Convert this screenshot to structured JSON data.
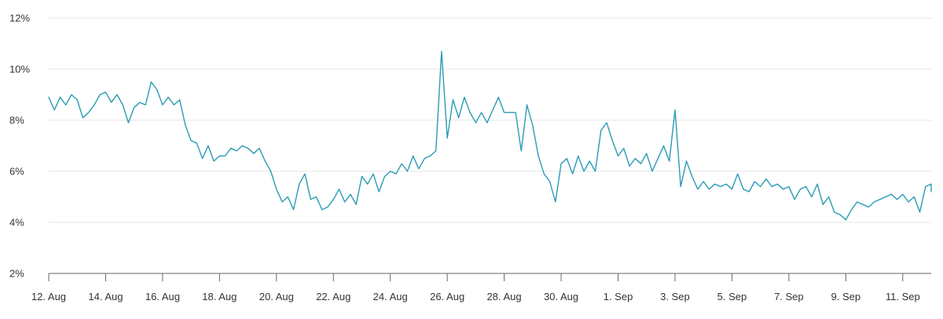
{
  "chart_data": {
    "type": "line",
    "title": "",
    "xlabel": "",
    "ylabel": "",
    "x_tick_labels": [
      "12. Aug",
      "14. Aug",
      "16. Aug",
      "18. Aug",
      "20. Aug",
      "22. Aug",
      "24. Aug",
      "26. Aug",
      "28. Aug",
      "30. Aug",
      "1. Sep",
      "3. Sep",
      "5. Sep",
      "7. Sep",
      "9. Sep",
      "11. Sep"
    ],
    "y_tick_labels": [
      "2%",
      "4%",
      "6%",
      "8%",
      "10%",
      "12%"
    ],
    "y_ticks": [
      2,
      4,
      6,
      8,
      10,
      12
    ],
    "ylim": [
      2,
      12
    ],
    "xlim": [
      "2023-08-12",
      "2023-09-12"
    ],
    "grid": true,
    "series": [
      {
        "color": "#2b9bb5",
        "points": [
          [
            "2023-08-12",
            8.9
          ],
          [
            "2023-08-12",
            8.4
          ],
          [
            "2023-08-12",
            8.9
          ],
          [
            "2023-08-12",
            8.6
          ],
          [
            "2023-08-12",
            9.0
          ],
          [
            "2023-08-13",
            8.8
          ],
          [
            "2023-08-13",
            8.1
          ],
          [
            "2023-08-13",
            8.3
          ],
          [
            "2023-08-13",
            8.6
          ],
          [
            "2023-08-13",
            9.0
          ],
          [
            "2023-08-14",
            9.1
          ],
          [
            "2023-08-14",
            8.7
          ],
          [
            "2023-08-14",
            9.0
          ],
          [
            "2023-08-14",
            8.6
          ],
          [
            "2023-08-14",
            7.9
          ],
          [
            "2023-08-15",
            8.5
          ],
          [
            "2023-08-15",
            8.7
          ],
          [
            "2023-08-15",
            8.6
          ],
          [
            "2023-08-15",
            9.5
          ],
          [
            "2023-08-15",
            9.2
          ],
          [
            "2023-08-16",
            8.6
          ],
          [
            "2023-08-16",
            8.9
          ],
          [
            "2023-08-16",
            8.6
          ],
          [
            "2023-08-16",
            8.8
          ],
          [
            "2023-08-16",
            7.8
          ],
          [
            "2023-08-17",
            7.2
          ],
          [
            "2023-08-17",
            7.1
          ],
          [
            "2023-08-17",
            6.5
          ],
          [
            "2023-08-17",
            7.0
          ],
          [
            "2023-08-17",
            6.4
          ],
          [
            "2023-08-18",
            6.6
          ],
          [
            "2023-08-18",
            6.6
          ],
          [
            "2023-08-18",
            6.9
          ],
          [
            "2023-08-18",
            6.8
          ],
          [
            "2023-08-18",
            7.0
          ],
          [
            "2023-08-19",
            6.9
          ],
          [
            "2023-08-19",
            6.7
          ],
          [
            "2023-08-19",
            6.9
          ],
          [
            "2023-08-19",
            6.4
          ],
          [
            "2023-08-19",
            6.0
          ],
          [
            "2023-08-20",
            5.3
          ],
          [
            "2023-08-20",
            4.8
          ],
          [
            "2023-08-20",
            5.0
          ],
          [
            "2023-08-20",
            4.5
          ],
          [
            "2023-08-20",
            5.5
          ],
          [
            "2023-08-21",
            5.9
          ],
          [
            "2023-08-21",
            4.9
          ],
          [
            "2023-08-21",
            5.0
          ],
          [
            "2023-08-21",
            4.5
          ],
          [
            "2023-08-21",
            4.6
          ],
          [
            "2023-08-22",
            4.9
          ],
          [
            "2023-08-22",
            5.3
          ],
          [
            "2023-08-22",
            4.8
          ],
          [
            "2023-08-22",
            5.1
          ],
          [
            "2023-08-22",
            4.7
          ],
          [
            "2023-08-23",
            5.8
          ],
          [
            "2023-08-23",
            5.5
          ],
          [
            "2023-08-23",
            5.9
          ],
          [
            "2023-08-23",
            5.2
          ],
          [
            "2023-08-23",
            5.8
          ],
          [
            "2023-08-24",
            6.0
          ],
          [
            "2023-08-24",
            5.9
          ],
          [
            "2023-08-24",
            6.3
          ],
          [
            "2023-08-24",
            6.0
          ],
          [
            "2023-08-24",
            6.6
          ],
          [
            "2023-08-25",
            6.1
          ],
          [
            "2023-08-25",
            6.5
          ],
          [
            "2023-08-25",
            6.6
          ],
          [
            "2023-08-25",
            6.8
          ],
          [
            "2023-08-25",
            10.7
          ],
          [
            "2023-08-26",
            7.3
          ],
          [
            "2023-08-26",
            8.8
          ],
          [
            "2023-08-26",
            8.1
          ],
          [
            "2023-08-26",
            8.9
          ],
          [
            "2023-08-26",
            8.3
          ],
          [
            "2023-08-27",
            7.9
          ],
          [
            "2023-08-27",
            8.3
          ],
          [
            "2023-08-27",
            7.9
          ],
          [
            "2023-08-27",
            8.4
          ],
          [
            "2023-08-27",
            8.9
          ],
          [
            "2023-08-28",
            8.3
          ],
          [
            "2023-08-28",
            8.3
          ],
          [
            "2023-08-28",
            8.3
          ],
          [
            "2023-08-28",
            6.8
          ],
          [
            "2023-08-28",
            8.6
          ],
          [
            "2023-08-29",
            7.8
          ],
          [
            "2023-08-29",
            6.6
          ],
          [
            "2023-08-29",
            5.9
          ],
          [
            "2023-08-29",
            5.6
          ],
          [
            "2023-08-29",
            4.8
          ],
          [
            "2023-08-30",
            6.3
          ],
          [
            "2023-08-30",
            6.5
          ],
          [
            "2023-08-30",
            5.9
          ],
          [
            "2023-08-30",
            6.6
          ],
          [
            "2023-08-30",
            6.0
          ],
          [
            "2023-08-31",
            6.4
          ],
          [
            "2023-08-31",
            6.0
          ],
          [
            "2023-08-31",
            7.6
          ],
          [
            "2023-08-31",
            7.9
          ],
          [
            "2023-08-31",
            7.2
          ],
          [
            "2023-09-01",
            6.6
          ],
          [
            "2023-09-01",
            6.9
          ],
          [
            "2023-09-01",
            6.2
          ],
          [
            "2023-09-01",
            6.5
          ],
          [
            "2023-09-01",
            6.3
          ],
          [
            "2023-09-02",
            6.7
          ],
          [
            "2023-09-02",
            6.0
          ],
          [
            "2023-09-02",
            6.5
          ],
          [
            "2023-09-02",
            7.0
          ],
          [
            "2023-09-02",
            6.4
          ],
          [
            "2023-09-03",
            8.4
          ],
          [
            "2023-09-03",
            5.4
          ],
          [
            "2023-09-03",
            6.4
          ],
          [
            "2023-09-03",
            5.8
          ],
          [
            "2023-09-03",
            5.3
          ],
          [
            "2023-09-04",
            5.6
          ],
          [
            "2023-09-04",
            5.3
          ],
          [
            "2023-09-04",
            5.5
          ],
          [
            "2023-09-04",
            5.4
          ],
          [
            "2023-09-04",
            5.5
          ],
          [
            "2023-09-05",
            5.3
          ],
          [
            "2023-09-05",
            5.9
          ],
          [
            "2023-09-05",
            5.3
          ],
          [
            "2023-09-05",
            5.2
          ],
          [
            "2023-09-05",
            5.6
          ],
          [
            "2023-09-06",
            5.4
          ],
          [
            "2023-09-06",
            5.7
          ],
          [
            "2023-09-06",
            5.4
          ],
          [
            "2023-09-06",
            5.5
          ],
          [
            "2023-09-06",
            5.3
          ],
          [
            "2023-09-07",
            5.4
          ],
          [
            "2023-09-07",
            4.9
          ],
          [
            "2023-09-07",
            5.3
          ],
          [
            "2023-09-07",
            5.4
          ],
          [
            "2023-09-07",
            5.0
          ],
          [
            "2023-09-08",
            5.5
          ],
          [
            "2023-09-08",
            4.7
          ],
          [
            "2023-09-08",
            5.0
          ],
          [
            "2023-09-08",
            4.4
          ],
          [
            "2023-09-08",
            4.3
          ],
          [
            "2023-09-09",
            4.1
          ],
          [
            "2023-09-09",
            4.5
          ],
          [
            "2023-09-09",
            4.8
          ],
          [
            "2023-09-09",
            4.7
          ],
          [
            "2023-09-09",
            4.6
          ],
          [
            "2023-09-10",
            4.8
          ],
          [
            "2023-09-10",
            4.9
          ],
          [
            "2023-09-10",
            5.0
          ],
          [
            "2023-09-10",
            5.1
          ],
          [
            "2023-09-10",
            4.9
          ],
          [
            "2023-09-11",
            5.1
          ],
          [
            "2023-09-11",
            4.8
          ],
          [
            "2023-09-11",
            5.0
          ],
          [
            "2023-09-11",
            4.4
          ],
          [
            "2023-09-11",
            5.4
          ],
          [
            "2023-09-12",
            5.5
          ],
          [
            "2023-09-12",
            5.4
          ],
          [
            "2023-09-12",
            5.2
          ],
          [
            "2023-09-12",
            5.4
          ],
          [
            "2023-09-12",
            5.5
          ]
        ]
      }
    ]
  }
}
